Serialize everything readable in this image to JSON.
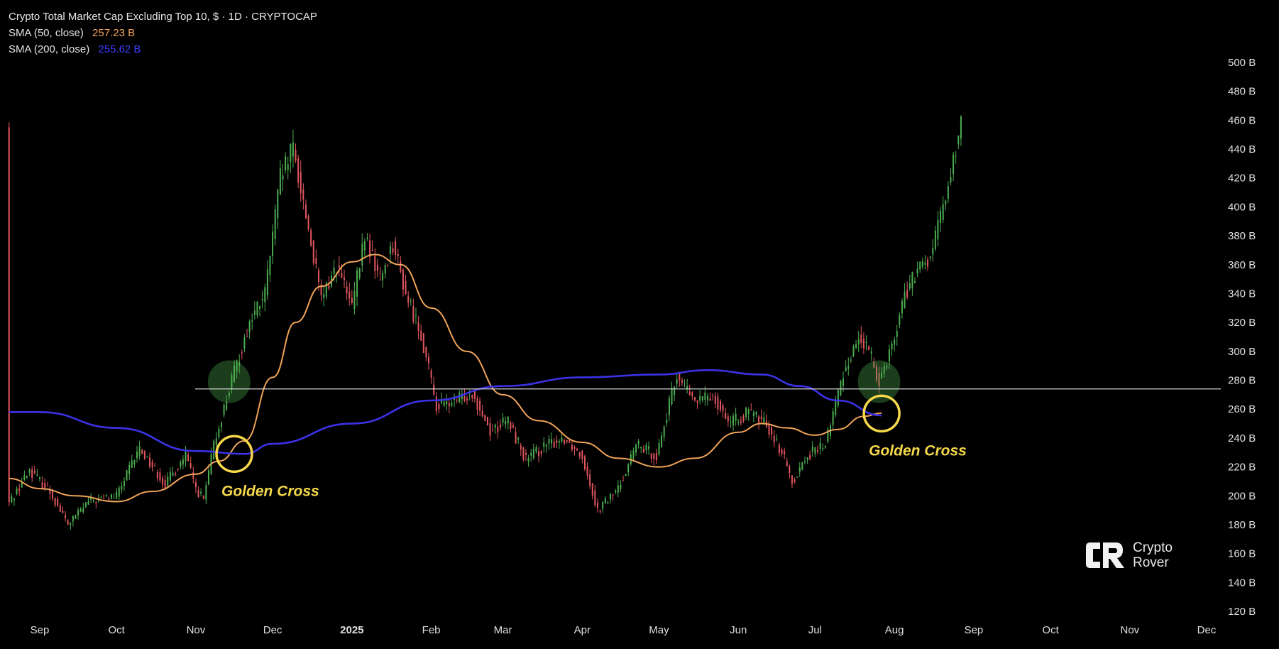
{
  "legend": {
    "title": "Crypto Total Market Cap Excluding Top 10, $ · 1D · CRYPTOCAP",
    "sma50_label": "SMA (50, close)",
    "sma50_value": "257.23 B",
    "sma200_label": "SMA (200, close)",
    "sma200_value": "255.62 B"
  },
  "logo": {
    "line1": "Crypto",
    "line2": "Rover"
  },
  "chart_data": {
    "type": "line",
    "title": "Crypto Total Market Cap Excluding Top 10, $ · 1D · CRYPTOCAP",
    "y_unit": "B",
    "ylim": [
      120,
      500
    ],
    "y_ticks": [
      "500 B",
      "480 B",
      "460 B",
      "440 B",
      "420 B",
      "400 B",
      "380 B",
      "360 B",
      "340 B",
      "320 B",
      "300 B",
      "280 B",
      "260 B",
      "240 B",
      "220 B",
      "200 B",
      "180 B",
      "160 B",
      "140 B",
      "120 B"
    ],
    "x_ticks": [
      "Sep",
      "Oct",
      "Nov",
      "Dec",
      "2025",
      "Feb",
      "Mar",
      "Apr",
      "May",
      "Jun",
      "Jul",
      "Aug",
      "Sep",
      "Oct",
      "Nov",
      "Dec"
    ],
    "x_range": [
      "2024-09-01",
      "2025-12-01"
    ],
    "grid": false,
    "colors": {
      "up": "#4caf50",
      "down": "#e5575f",
      "sma50": "#f0a35a",
      "sma200": "#3b32e6",
      "annotation": "#f6d94a",
      "level_line": "#d9d9d9"
    },
    "series": [
      {
        "name": "SMA (50, close)",
        "points": [
          [
            "2024-08-20",
            212
          ],
          [
            "2024-09-01",
            205
          ],
          [
            "2024-09-15",
            200
          ],
          [
            "2024-10-01",
            196
          ],
          [
            "2024-10-15",
            203
          ],
          [
            "2024-11-01",
            215
          ],
          [
            "2024-11-10",
            224
          ],
          [
            "2024-11-20",
            238
          ],
          [
            "2024-12-01",
            282
          ],
          [
            "2024-12-10",
            320
          ],
          [
            "2024-12-20",
            345
          ],
          [
            "2025-01-01",
            362
          ],
          [
            "2025-01-10",
            367
          ],
          [
            "2025-01-20",
            360
          ],
          [
            "2025-02-01",
            330
          ],
          [
            "2025-02-15",
            300
          ],
          [
            "2025-03-01",
            270
          ],
          [
            "2025-03-15",
            252
          ],
          [
            "2025-04-01",
            237
          ],
          [
            "2025-04-15",
            226
          ],
          [
            "2025-05-01",
            220
          ],
          [
            "2025-05-15",
            226
          ],
          [
            "2025-06-01",
            244
          ],
          [
            "2025-06-10",
            250
          ],
          [
            "2025-06-20",
            247
          ],
          [
            "2025-07-01",
            242
          ],
          [
            "2025-07-10",
            246
          ],
          [
            "2025-07-20",
            255
          ],
          [
            "2025-07-27",
            257.23
          ]
        ]
      },
      {
        "name": "SMA (200, close)",
        "points": [
          [
            "2024-08-20",
            258
          ],
          [
            "2024-09-01",
            258
          ],
          [
            "2024-10-01",
            247
          ],
          [
            "2024-11-01",
            231
          ],
          [
            "2024-11-20",
            229
          ],
          [
            "2024-12-01",
            236
          ],
          [
            "2025-01-01",
            250
          ],
          [
            "2025-02-01",
            266
          ],
          [
            "2025-03-01",
            276
          ],
          [
            "2025-04-01",
            282
          ],
          [
            "2025-05-01",
            284
          ],
          [
            "2025-05-20",
            287
          ],
          [
            "2025-06-10",
            284
          ],
          [
            "2025-06-25",
            276
          ],
          [
            "2025-07-10",
            266
          ],
          [
            "2025-07-27",
            255.62
          ]
        ]
      },
      {
        "name": "Price",
        "points": [
          [
            "2024-08-20",
            195
          ],
          [
            "2024-08-28",
            218
          ],
          [
            "2024-09-05",
            203
          ],
          [
            "2024-09-12",
            180
          ],
          [
            "2024-09-20",
            196
          ],
          [
            "2024-10-01",
            200
          ],
          [
            "2024-10-10",
            233
          ],
          [
            "2024-10-20",
            208
          ],
          [
            "2024-10-28",
            228
          ],
          [
            "2024-11-01",
            205
          ],
          [
            "2024-11-04",
            197
          ],
          [
            "2024-11-08",
            235
          ],
          [
            "2024-11-15",
            280
          ],
          [
            "2024-11-22",
            320
          ],
          [
            "2024-11-28",
            340
          ],
          [
            "2024-12-04",
            420
          ],
          [
            "2024-12-09",
            440
          ],
          [
            "2024-12-15",
            385
          ],
          [
            "2024-12-20",
            335
          ],
          [
            "2024-12-26",
            360
          ],
          [
            "2025-01-01",
            330
          ],
          [
            "2025-01-06",
            380
          ],
          [
            "2025-01-12",
            350
          ],
          [
            "2025-01-17",
            375
          ],
          [
            "2025-01-22",
            340
          ],
          [
            "2025-01-28",
            312
          ],
          [
            "2025-02-03",
            262
          ],
          [
            "2025-02-10",
            265
          ],
          [
            "2025-02-17",
            272
          ],
          [
            "2025-02-24",
            245
          ],
          [
            "2025-03-03",
            252
          ],
          [
            "2025-03-10",
            225
          ],
          [
            "2025-03-18",
            235
          ],
          [
            "2025-03-25",
            240
          ],
          [
            "2025-04-01",
            228
          ],
          [
            "2025-04-07",
            190
          ],
          [
            "2025-04-15",
            205
          ],
          [
            "2025-04-22",
            235
          ],
          [
            "2025-04-30",
            228
          ],
          [
            "2025-05-08",
            284
          ],
          [
            "2025-05-15",
            265
          ],
          [
            "2025-05-22",
            270
          ],
          [
            "2025-05-29",
            250
          ],
          [
            "2025-06-05",
            258
          ],
          [
            "2025-06-12",
            250
          ],
          [
            "2025-06-18",
            230
          ],
          [
            "2025-06-22",
            210
          ],
          [
            "2025-06-28",
            228
          ],
          [
            "2025-07-05",
            236
          ],
          [
            "2025-07-12",
            285
          ],
          [
            "2025-07-18",
            310
          ],
          [
            "2025-07-22",
            300
          ],
          [
            "2025-07-26",
            280
          ],
          [
            "2025-08-01",
            310
          ],
          [
            "2025-08-05",
            340
          ],
          [
            "2025-08-10",
            355
          ],
          [
            "2025-08-15",
            365
          ],
          [
            "2025-08-20",
            400
          ],
          [
            "2025-08-25",
            440
          ],
          [
            "2025-08-27",
            455
          ]
        ]
      }
    ],
    "level_line": 274,
    "annotations": [
      {
        "text": "Golden Cross",
        "date": "2024-11-16",
        "value": 229
      },
      {
        "text": "Golden Cross",
        "date": "2025-07-27",
        "value": 257
      }
    ],
    "highlight_zones": [
      {
        "date": "2024-11-14",
        "value": 279
      },
      {
        "date": "2025-07-26",
        "value": 279
      }
    ]
  }
}
